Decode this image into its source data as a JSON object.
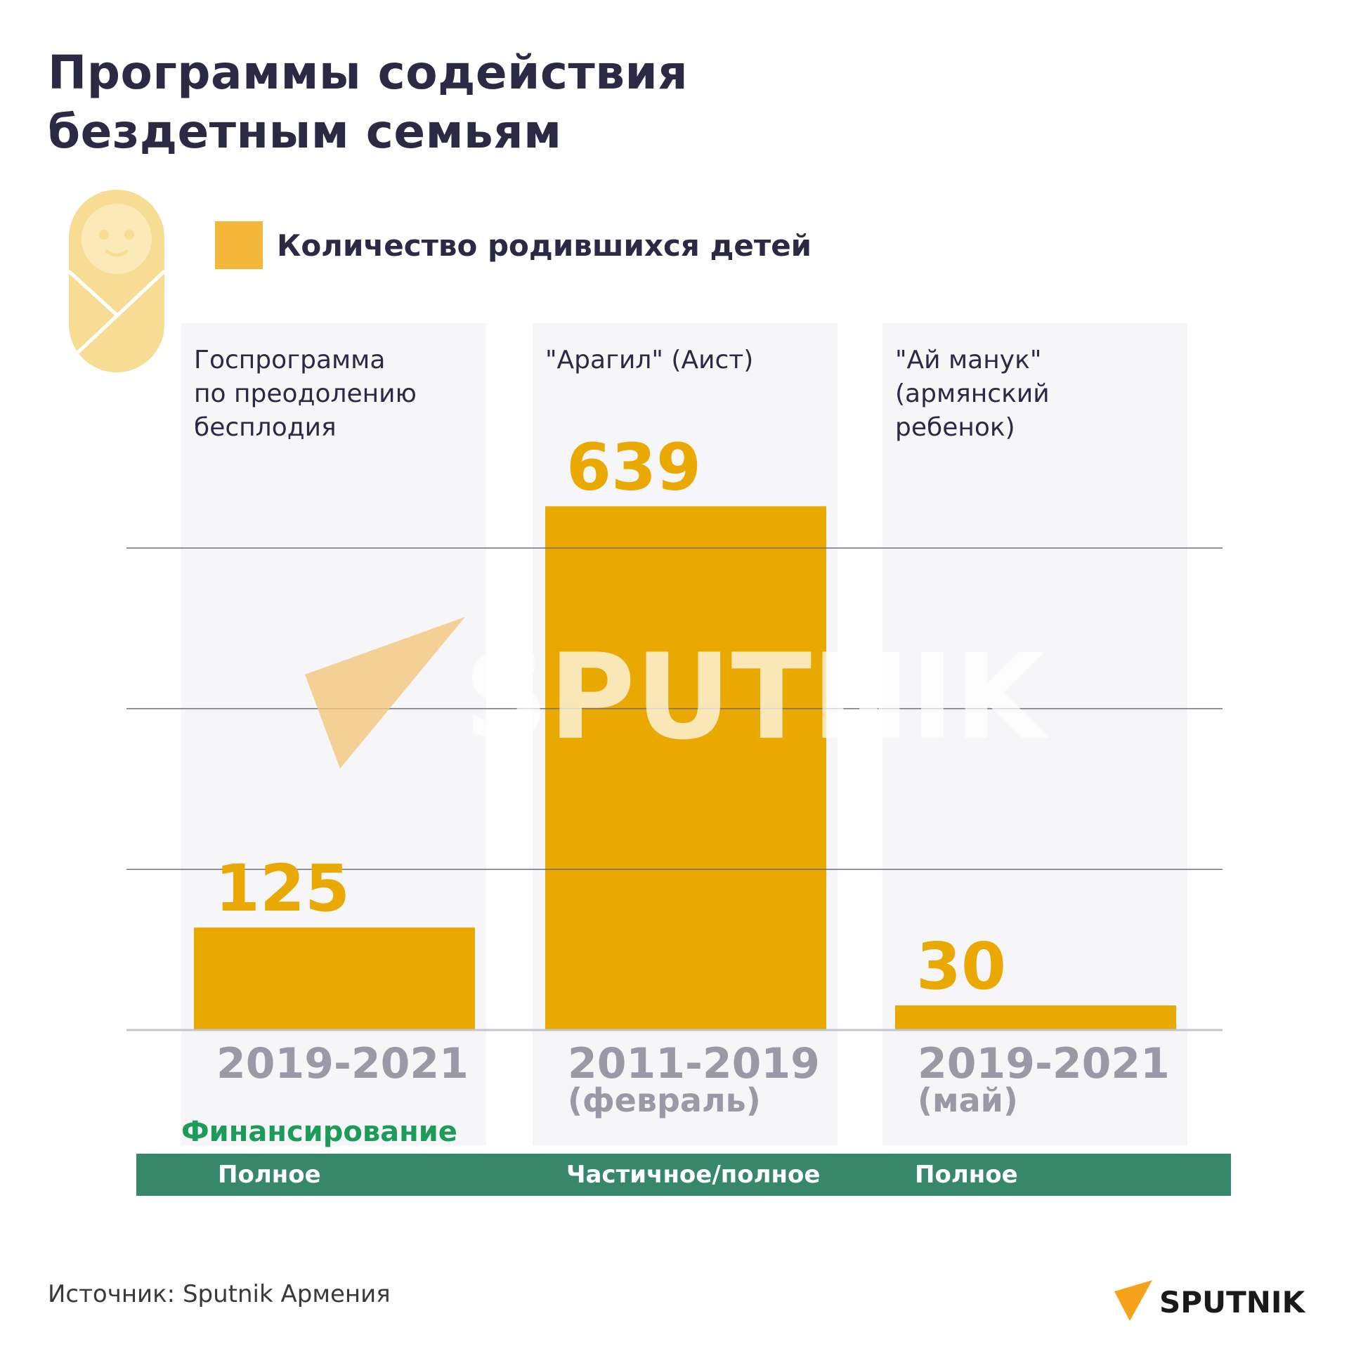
{
  "title_lines": [
    "Программы содействия",
    "бездетным семьям"
  ],
  "legend": {
    "label": "Количество родившихся детей",
    "color": "#f3b73a"
  },
  "chart_data": {
    "type": "bar",
    "title": "Программы содействия бездетным семьям",
    "categories": [
      [
        "Госпрограмма",
        "по преодолению",
        "бесплодия"
      ],
      [
        "\"Арагил\" (Аист)"
      ],
      [
        "\"Ай манук\"",
        "(армянский",
        "ребенок)"
      ]
    ],
    "periods": [
      [
        "2019-2021"
      ],
      [
        "2011-2019",
        "(февраль)"
      ],
      [
        "2019-2021",
        "(май)"
      ]
    ],
    "series": [
      {
        "name": "Количество родившихся детей",
        "values": [
          125,
          639,
          30
        ]
      }
    ],
    "ylim": [
      0,
      680
    ],
    "gridlines": [
      196,
      392,
      588
    ],
    "bar_color": "#eaa900",
    "label_color": "#eaa900",
    "column_bg": "#f6f6f8"
  },
  "funding": {
    "title": "Финансирование",
    "values": [
      "Полное",
      "Частичное/полное",
      "Полное"
    ],
    "color": "#37876b"
  },
  "watermark": "SPUTNIK",
  "source": "Источник: Sputnik Армения",
  "logo_text": "SPUTNIK"
}
